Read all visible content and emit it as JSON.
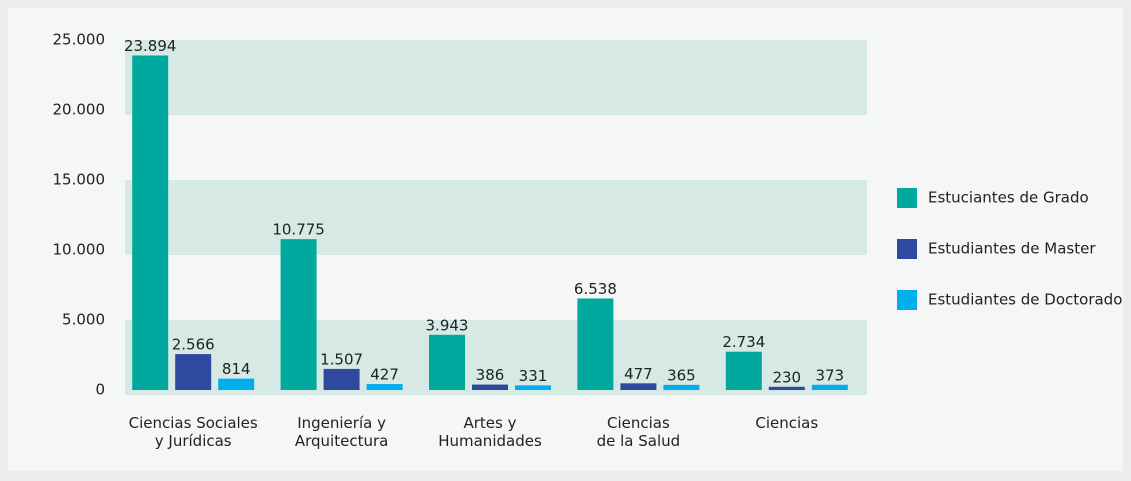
{
  "chart_data": {
    "type": "bar",
    "categories": [
      "Ciencias Sociales\ny Jurídicas",
      "Ingeniería y\nArquitectura",
      "Artes y\nHumanidades",
      "Ciencias\nde la Salud",
      "Ciencias"
    ],
    "series": [
      {
        "name": "Estuciantes de Grado",
        "color": "#00a99d",
        "values": [
          23894,
          10775,
          3943,
          6538,
          2734
        ],
        "value_labels": [
          "23.894",
          "10.775",
          "3.943",
          "6.538",
          "2.734"
        ]
      },
      {
        "name": "Estudiantes de Master",
        "color": "#2e4a9e",
        "values": [
          2566,
          1507,
          386,
          477,
          230
        ],
        "value_labels": [
          "2.566",
          "1.507",
          "386",
          "477",
          "230"
        ]
      },
      {
        "name": "Estudiantes de Doctorado",
        "color": "#00aeef",
        "values": [
          814,
          427,
          331,
          365,
          373
        ],
        "value_labels": [
          "814",
          "427",
          "331",
          "365",
          "373"
        ]
      }
    ],
    "ylim": [
      0,
      25000
    ],
    "yticks": [
      0,
      {
        "value": 5000,
        "label": "5.000"
      },
      {
        "value": 10000,
        "label": "10.000"
      },
      {
        "value": 15000,
        "label": "15.000"
      },
      {
        "value": 20000,
        "label": "20.000"
      },
      {
        "value": 25000,
        "label": "25.000"
      }
    ],
    "grid": "bands",
    "legend": "right"
  }
}
